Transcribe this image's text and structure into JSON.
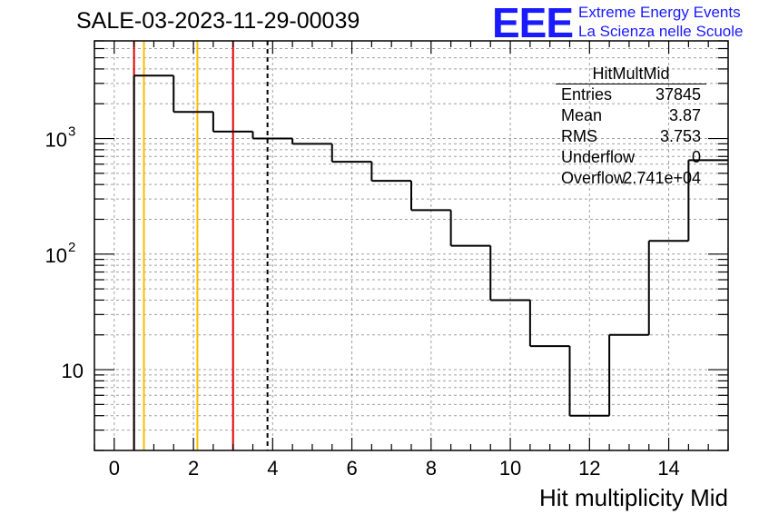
{
  "title": "SALE-03-2023-11-29-00039",
  "logo": {
    "mark": "EEE",
    "line1": "Extreme Energy Events",
    "line2": "La Scienza nelle Scuole",
    "color": "#1a1aff"
  },
  "stats": {
    "name": "HitMultMid",
    "rows": [
      {
        "key": "Entries",
        "value": "37845"
      },
      {
        "key": "Mean",
        "value": "3.87"
      },
      {
        "key": "RMS",
        "value": "3.753"
      },
      {
        "key": "Underflow",
        "value": "0"
      },
      {
        "key": "Overflow",
        "value": "2.741e+04"
      }
    ]
  },
  "chart_data": {
    "type": "histogram",
    "title": "SALE-03-2023-11-29-00039",
    "xlabel": "Hit multiplicity Mid",
    "ylabel": "",
    "xlim": [
      -0.5,
      15.5
    ],
    "ylim": [
      2,
      7000
    ],
    "yscale": "log",
    "grid": true,
    "bin_edges": [
      0.5,
      1.5,
      2.5,
      3.5,
      4.5,
      5.5,
      6.5,
      7.5,
      8.5,
      9.5,
      10.5,
      11.5,
      12.5,
      13.5,
      14.5,
      15.5
    ],
    "counts": [
      3500,
      1700,
      1150,
      1000,
      900,
      630,
      430,
      240,
      118,
      40,
      16,
      4,
      20,
      130,
      650
    ],
    "xticks": [
      0,
      2,
      4,
      6,
      8,
      10,
      12,
      14
    ],
    "yticks": [
      {
        "value": 10,
        "label": "10"
      },
      {
        "value": 100,
        "label": "10",
        "exp": "2"
      },
      {
        "value": 1000,
        "label": "10",
        "exp": "3"
      }
    ],
    "vlines": [
      {
        "x": 0.5,
        "color": "#e00000",
        "style": "solid"
      },
      {
        "x": 0.75,
        "color": "#ffbb00",
        "style": "solid"
      },
      {
        "x": 2.1,
        "color": "#ffbb00",
        "style": "solid"
      },
      {
        "x": 3.0,
        "color": "#e00000",
        "style": "solid"
      },
      {
        "x": 3.87,
        "color": "#000000",
        "style": "dashed"
      }
    ],
    "line_color": "#000000"
  }
}
